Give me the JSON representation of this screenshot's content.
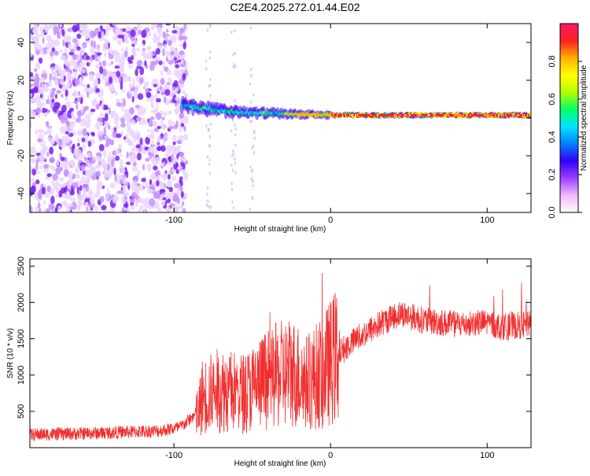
{
  "figure_title": "C2E4.2025.272.01.44.E02",
  "chart_data": [
    {
      "type": "heatmap",
      "title": "",
      "xlabel": "Height of straight line (km)",
      "ylabel": "Frequency (Hz)",
      "xlim": [
        -192,
        128
      ],
      "ylim": [
        -50,
        50
      ],
      "xticks": [
        -100,
        0,
        100
      ],
      "yticks": [
        -40,
        -20,
        0,
        20,
        40
      ],
      "xtick_labels": [
        "-100",
        "0",
        "100"
      ],
      "ytick_labels": [
        "-40",
        "-20",
        "0",
        "20",
        "40"
      ],
      "colorbar": {
        "label": "Normalized spectral amplitude",
        "range": [
          0,
          1
        ],
        "ticks": [
          0.0,
          0.2,
          0.4,
          0.6,
          0.8
        ],
        "tick_labels": [
          "0.0",
          "0.2",
          "0.4",
          "0.6",
          "0.8"
        ],
        "colors": [
          "#ffffff",
          "#f2b8ff",
          "#9b40ff",
          "#3300ff",
          "#0080ff",
          "#00e5ff",
          "#00ff66",
          "#b6ff00",
          "#ffff00",
          "#ffb000",
          "#ff2020",
          "#ff1a66"
        ]
      },
      "signal_track": {
        "description_points_km_hz": [
          [
            -95,
            7
          ],
          [
            -80,
            5
          ],
          [
            -60,
            3
          ],
          [
            -40,
            2.5
          ],
          [
            -20,
            2
          ],
          [
            0,
            1.5
          ],
          [
            20,
            1.5
          ],
          [
            60,
            1.5
          ],
          [
            100,
            1.5
          ],
          [
            128,
            1.5
          ]
        ]
      },
      "noise_region_x": [
        -192,
        -92
      ]
    },
    {
      "type": "line",
      "title": "",
      "xlabel": "Height of straight line (km)",
      "ylabel": "SNR (10 * v/v)",
      "xlim": [
        -192,
        128
      ],
      "ylim": [
        0,
        2600
      ],
      "xticks": [
        -100,
        0,
        100
      ],
      "yticks": [
        500,
        1000,
        1500,
        2000,
        2500
      ],
      "xtick_labels": [
        "-100",
        "0",
        "100"
      ],
      "ytick_labels": [
        "500",
        "1000",
        "1500",
        "2000",
        "2500"
      ],
      "color": "#f03030",
      "envelope_km_snr": [
        [
          -192,
          180
        ],
        [
          -150,
          200
        ],
        [
          -110,
          230
        ],
        [
          -96,
          280
        ],
        [
          -85,
          480
        ],
        [
          -82,
          700
        ],
        [
          -70,
          800
        ],
        [
          -55,
          750
        ],
        [
          -40,
          950
        ],
        [
          -25,
          1050
        ],
        [
          -15,
          900
        ],
        [
          -5,
          1050
        ],
        [
          5,
          1300
        ],
        [
          20,
          1550
        ],
        [
          35,
          1750
        ],
        [
          45,
          1850
        ],
        [
          60,
          1750
        ],
        [
          80,
          1700
        ],
        [
          100,
          1720
        ],
        [
          110,
          1660
        ],
        [
          128,
          1700
        ]
      ]
    }
  ]
}
